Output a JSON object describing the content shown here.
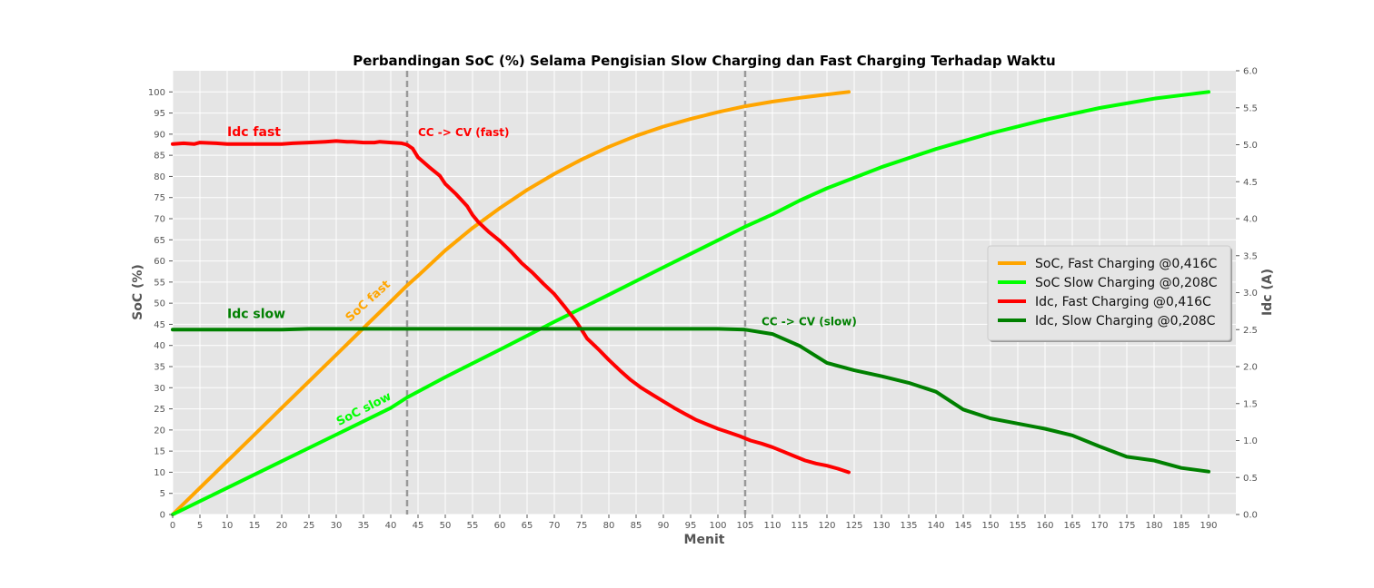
{
  "chart_data": {
    "type": "line",
    "title": "Perbandingan SoC (%) Selama Pengisian Slow Charging dan Fast Charging Terhadap Waktu",
    "xlabel": "Menit",
    "ylabel_left": "SoC (%)",
    "ylabel_right": "Idc (A)",
    "xlim": [
      0,
      195
    ],
    "ylim_left": [
      0,
      105
    ],
    "ylim_right": [
      0,
      6.0
    ],
    "x_ticks": [
      "0",
      "5",
      "10",
      "15",
      "20",
      "25",
      "30",
      "35",
      "40",
      "45",
      "50",
      "55",
      "60",
      "65",
      "70",
      "75",
      "80",
      "85",
      "90",
      "95",
      "100",
      "105",
      "110",
      "115",
      "120",
      "125",
      "130",
      "135",
      "140",
      "145",
      "150",
      "155",
      "160",
      "165",
      "170",
      "175",
      "180",
      "185",
      "190"
    ],
    "y_left_ticks": [
      "0",
      "5",
      "10",
      "15",
      "20",
      "25",
      "30",
      "35",
      "40",
      "45",
      "50",
      "55",
      "60",
      "65",
      "70",
      "75",
      "80",
      "85",
      "90",
      "95",
      "100"
    ],
    "y_right_ticks": [
      "0.0",
      "0.5",
      "1.0",
      "1.5",
      "2.0",
      "2.5",
      "3.0",
      "3.5",
      "4.0",
      "4.5",
      "5.0",
      "5.5",
      "6.0"
    ],
    "grid": true,
    "legend_position": "center-right",
    "series": [
      {
        "name": "SoC, Fast Charging @0,416C",
        "axis": "left",
        "color": "#ffa500",
        "x": [
          0,
          5,
          10,
          15,
          20,
          25,
          30,
          35,
          40,
          43,
          45,
          50,
          55,
          60,
          65,
          70,
          75,
          80,
          85,
          90,
          95,
          100,
          105,
          110,
          115,
          120,
          124
        ],
        "y": [
          0,
          6.3,
          12.6,
          18.9,
          25.2,
          31.5,
          37.8,
          44.1,
          50.4,
          54.2,
          56.5,
          62.5,
          67.8,
          72.5,
          76.8,
          80.6,
          84,
          87,
          89.6,
          91.8,
          93.6,
          95.2,
          96.6,
          97.7,
          98.6,
          99.4,
          100
        ]
      },
      {
        "name": "SoC Slow Charging @0,208C",
        "axis": "left",
        "color": "#00ff00",
        "x": [
          0,
          10,
          20,
          30,
          40,
          43,
          50,
          60,
          70,
          80,
          90,
          100,
          105,
          110,
          115,
          120,
          130,
          140,
          150,
          160,
          170,
          180,
          190
        ],
        "y": [
          0,
          6.3,
          12.6,
          18.9,
          25.2,
          27.7,
          32.5,
          39,
          45.6,
          52,
          58.5,
          64.9,
          68.1,
          71,
          74.3,
          77.2,
          82.2,
          86.5,
          90.2,
          93.4,
          96.2,
          98.4,
          100
        ]
      },
      {
        "name": "Idc, Fast Charging @0,416C",
        "axis": "right",
        "color": "#ff0000",
        "x": [
          0,
          2,
          4,
          5,
          8,
          10,
          15,
          20,
          22,
          25,
          28,
          30,
          32,
          33,
          35,
          37,
          38,
          40,
          42,
          43,
          44,
          45,
          47,
          49,
          50,
          52,
          54,
          55,
          56,
          58,
          60,
          62,
          64,
          66,
          68,
          70,
          72,
          74,
          75,
          76,
          78,
          80,
          82,
          84,
          86,
          88,
          90,
          92,
          94,
          96,
          98,
          100,
          102,
          104,
          106,
          108,
          110,
          112,
          114,
          116,
          118,
          120,
          122,
          124
        ],
        "y": [
          5.01,
          5.02,
          5.01,
          5.03,
          5.02,
          5.01,
          5.01,
          5.01,
          5.02,
          5.03,
          5.04,
          5.05,
          5.04,
          5.04,
          5.03,
          5.03,
          5.04,
          5.03,
          5.02,
          5.0,
          4.95,
          4.83,
          4.7,
          4.58,
          4.47,
          4.33,
          4.17,
          4.05,
          3.96,
          3.82,
          3.7,
          3.56,
          3.4,
          3.27,
          3.12,
          2.98,
          2.8,
          2.61,
          2.5,
          2.38,
          2.24,
          2.09,
          1.95,
          1.82,
          1.71,
          1.62,
          1.53,
          1.44,
          1.36,
          1.28,
          1.22,
          1.16,
          1.11,
          1.06,
          1.0,
          0.96,
          0.91,
          0.85,
          0.79,
          0.73,
          0.69,
          0.66,
          0.62,
          0.57
        ]
      },
      {
        "name": "Idc, Slow Charging @0,208C",
        "axis": "right",
        "color": "#008000",
        "x": [
          0,
          10,
          20,
          25,
          30,
          40,
          50,
          60,
          70,
          80,
          90,
          100,
          105,
          110,
          115,
          120,
          125,
          130,
          135,
          140,
          145,
          150,
          155,
          160,
          165,
          170,
          175,
          180,
          185,
          190
        ],
        "y": [
          2.5,
          2.5,
          2.5,
          2.51,
          2.51,
          2.51,
          2.51,
          2.51,
          2.51,
          2.51,
          2.51,
          2.51,
          2.5,
          2.44,
          2.28,
          2.05,
          1.95,
          1.87,
          1.78,
          1.66,
          1.42,
          1.3,
          1.23,
          1.16,
          1.07,
          0.92,
          0.78,
          0.73,
          0.63,
          0.58
        ]
      }
    ],
    "vlines": [
      {
        "x": 43,
        "label": "CC -> CV (fast)",
        "label_x": 45,
        "label_y": 89.5,
        "color": "#ff0000"
      },
      {
        "x": 105,
        "label": "CC -> CV (slow)",
        "label_x": 108,
        "label_y": 44.8,
        "color": "#008000"
      }
    ],
    "annotations": [
      {
        "text": "Idc fast",
        "x": 10,
        "y": 89.5,
        "color": "#ff0000",
        "rotate": 0,
        "size": 14
      },
      {
        "text": "Idc slow",
        "x": 10,
        "y": 46.5,
        "color": "#008000",
        "rotate": 0,
        "size": 14
      },
      {
        "text": "SoC fast",
        "x": 32.5,
        "y": 45.5,
        "color": "#ffa500",
        "rotate": -42,
        "size": 13
      },
      {
        "text": "SoC slow",
        "x": 30.5,
        "y": 21,
        "color": "#00ff00",
        "rotate": -27,
        "size": 13
      }
    ]
  }
}
